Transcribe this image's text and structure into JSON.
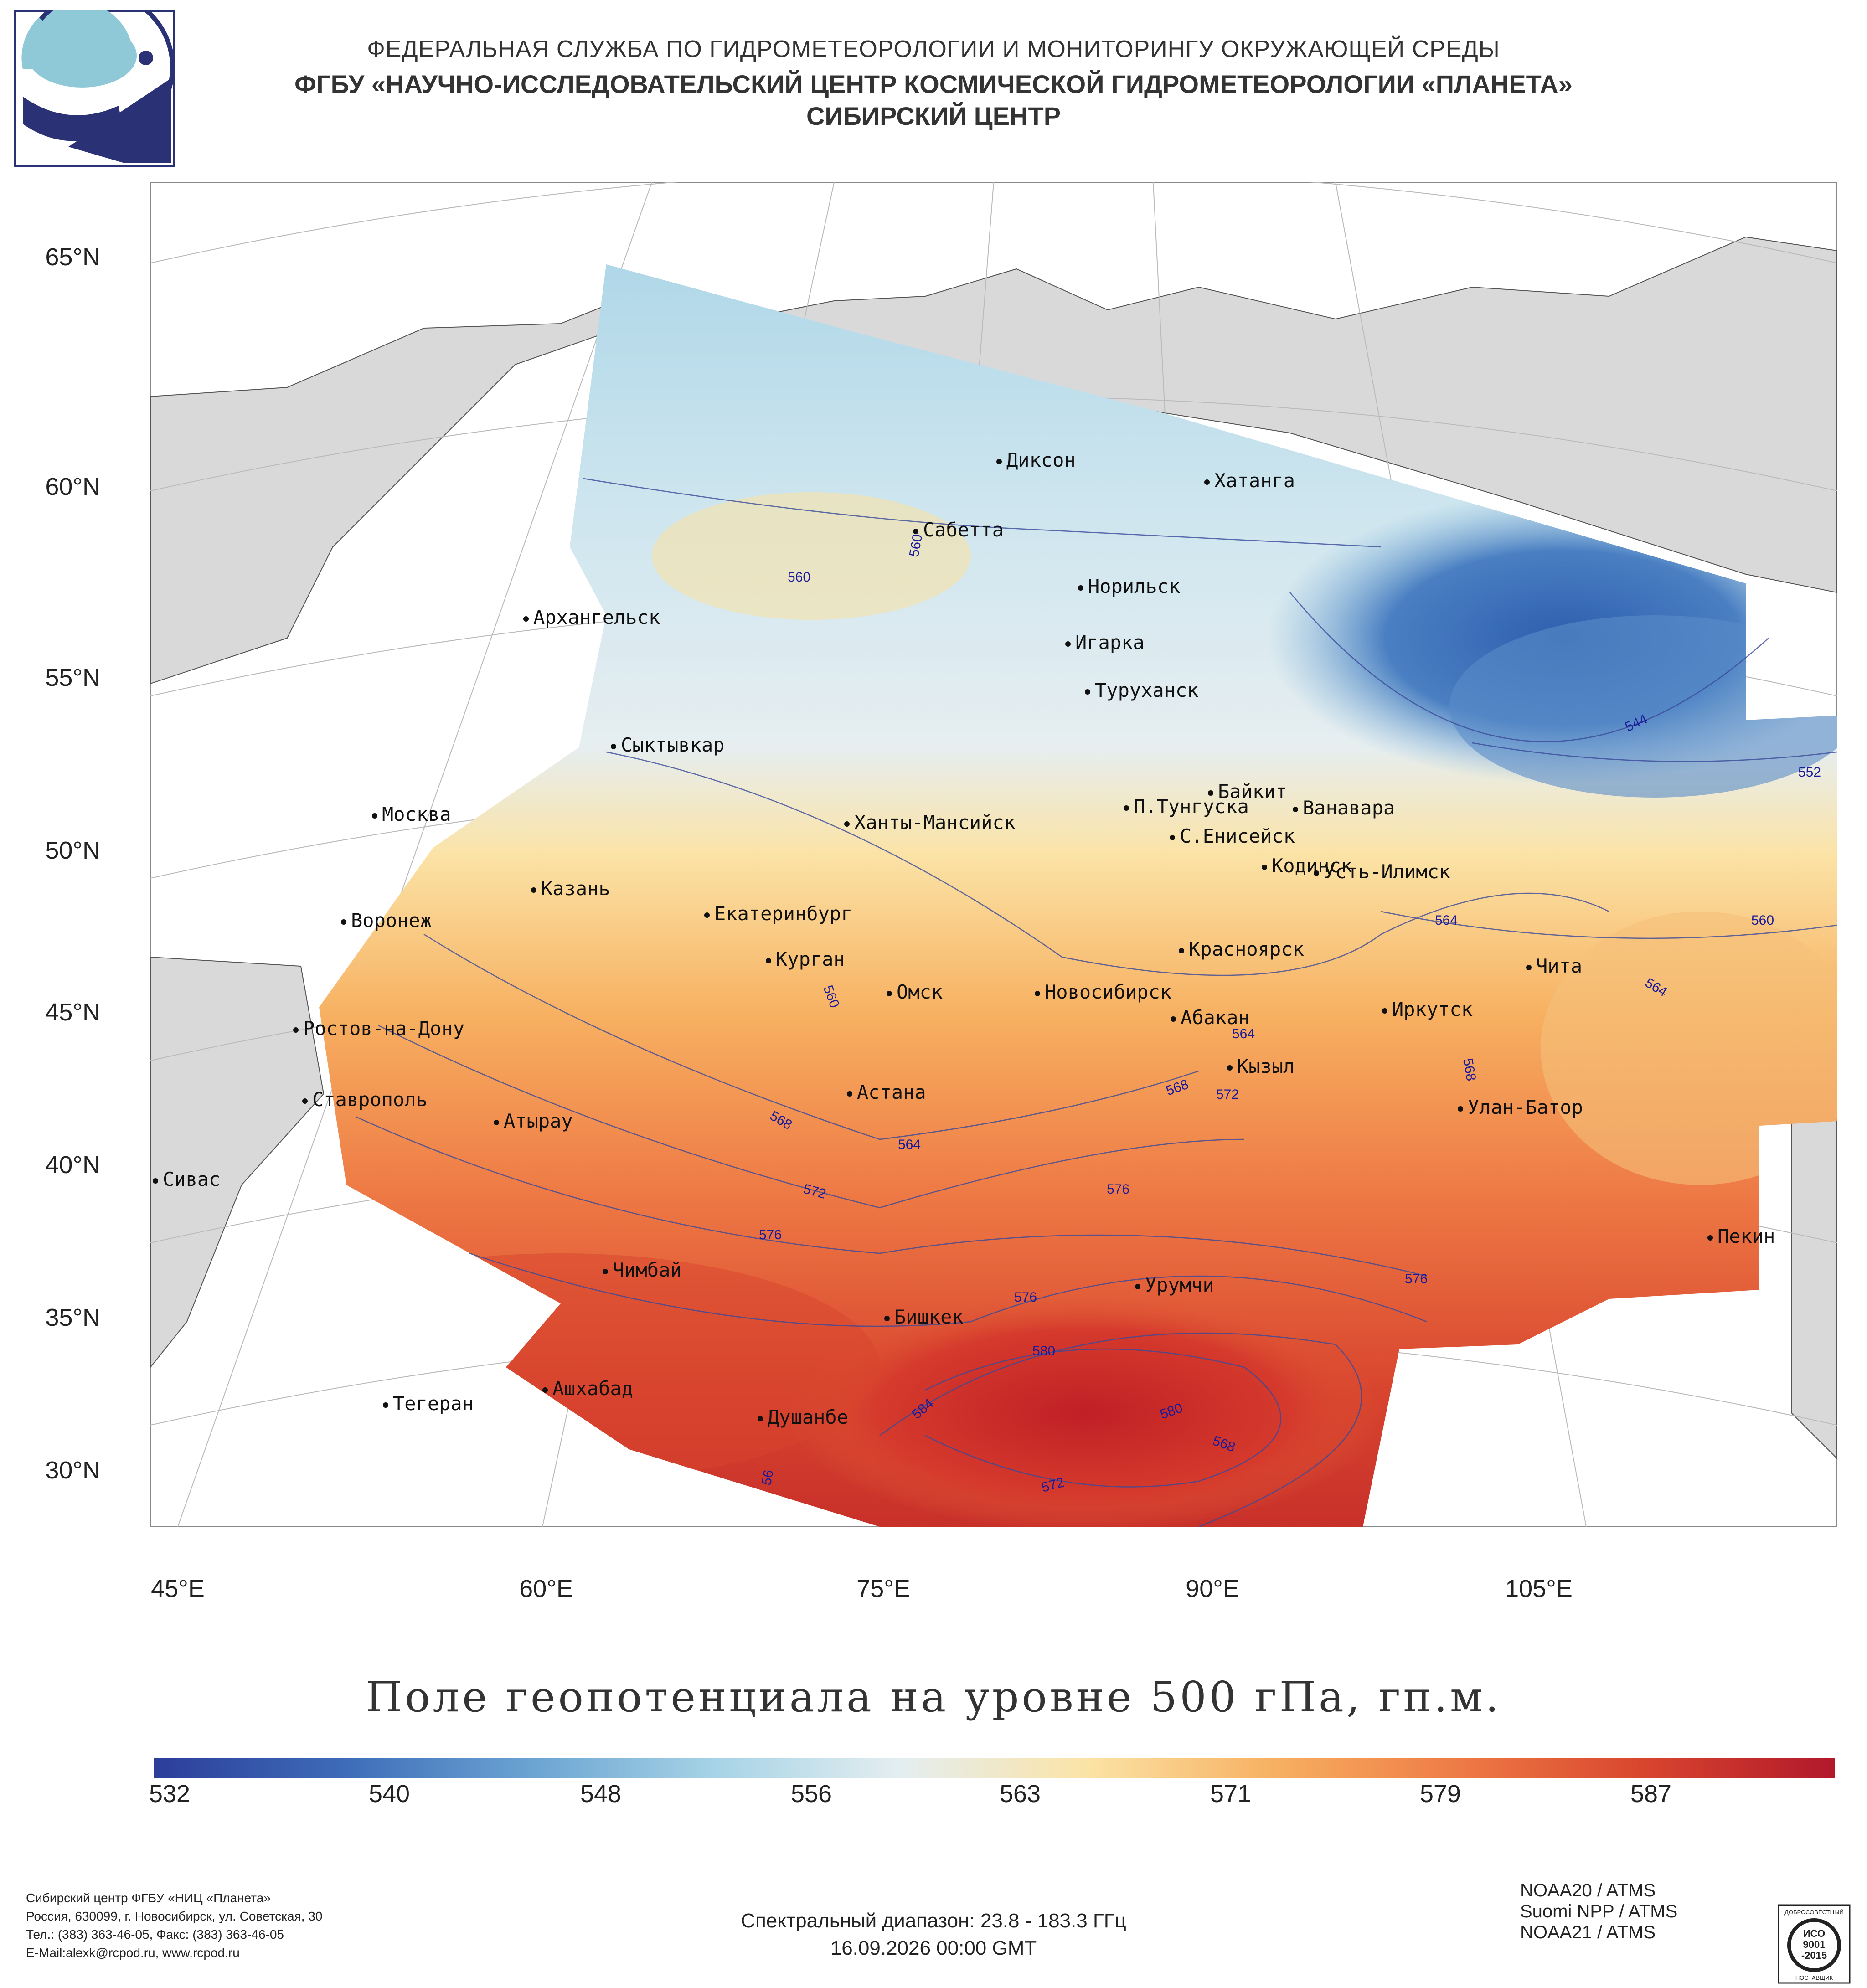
{
  "header": {
    "line1": "ФЕДЕРАЛЬНАЯ СЛУЖБА ПО ГИДРОМЕТЕОРОЛОГИИ И МОНИТОРИНГУ ОКРУЖАЮЩЕЙ СРЕДЫ",
    "line2": "ФГБУ «НАУЧНО-ИССЛЕДОВАТЕЛЬСКИЙ ЦЕНТР КОСМИЧЕСКОЙ ГИДРОМЕТЕОРОЛОГИИ «ПЛАНЕТА»",
    "line3": "СИБИРСКИЙ ЦЕНТР"
  },
  "map": {
    "lat_labels": [
      "65°N",
      "60°N",
      "55°N",
      "50°N",
      "45°N",
      "40°N",
      "35°N",
      "30°N"
    ],
    "lon_labels": [
      "45°E",
      "60°E",
      "75°E",
      "90°E",
      "105°E"
    ],
    "cities": [
      "Диксон",
      "Хатанга",
      "Сабетта",
      "Норильск",
      "Архангельск",
      "Игарка",
      "Туруханск",
      "Сыктывкар",
      "Байкит",
      "П.Тунгуска",
      "Ванавара",
      "Москва",
      "Ханты-Мансийск",
      "С.Енисейск",
      "Кодинск",
      "Усть-Илимск",
      "Казань",
      "Екатеринбург",
      "Воронеж",
      "Красноярск",
      "Курган",
      "Чита",
      "Омск",
      "Новосибирск",
      "Иркутск",
      "Ростов-на-Дону",
      "Абакан",
      "Кызыл",
      "Астана",
      "Ставрополь",
      "Улан-Батор",
      "Атырау",
      "Сивас",
      "Пекин",
      "Чимбай",
      "Урумчи",
      "Бишкек",
      "Ашхабад",
      "Тегеран",
      "Душанбе"
    ],
    "contour_labels": [
      "560",
      "560",
      "544",
      "552",
      "564",
      "560",
      "564",
      "560",
      "564",
      "568",
      "572",
      "568",
      "568",
      "564",
      "572",
      "576",
      "576",
      "576",
      "576",
      "580",
      "584",
      "580",
      "568",
      "572",
      "56"
    ]
  },
  "title": "Поле геопотенциала на уровне 500 гПа, гп.м.",
  "colorbar": {
    "ticks": [
      "532",
      "540",
      "548",
      "556",
      "563",
      "571",
      "579",
      "587"
    ],
    "colors": [
      "#2c3e9a",
      "#3d6bb8",
      "#6aa3d2",
      "#a6d3e6",
      "#e4eef0",
      "#fbe3a6",
      "#f7b061",
      "#ee7a45",
      "#d8442e",
      "#b2182b"
    ]
  },
  "satellites": [
    "NOAA20 / ATMS",
    "Suomi NPP / ATMS",
    "NOAA21 / ATMS"
  ],
  "footer": {
    "address": [
      "Сибирский центр ФГБУ «НИЦ «Планета»",
      "Россия, 630099, г. Новосибирск, ул. Советская, 30",
      "Тел.: (383) 363-46-05, Факс: (383) 363-46-05",
      "E-Mail:alexk@rcpod.ru, www.rcpod.ru"
    ],
    "spectral": "Спектральный диапазон: 23.8 - 183.3 ГГц",
    "datetime": "16.09.2026 00:00 GMT"
  },
  "iso": {
    "top": "ДОБРОСОВЕСТНЫЙ",
    "lines": [
      "ИСО",
      "9001",
      "-2015"
    ],
    "bottom": "ПОСТАВЩИК"
  }
}
